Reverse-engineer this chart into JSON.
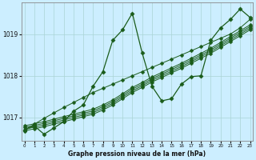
{
  "xlabel": "Graphe pression niveau de la mer (hPa)",
  "background_color": "#cceeff",
  "grid_color": "#aad4d4",
  "line_color": "#1a5c1a",
  "hours": [
    0,
    1,
    2,
    3,
    4,
    5,
    6,
    7,
    8,
    9,
    10,
    11,
    12,
    13,
    14,
    15,
    16,
    17,
    18,
    19,
    20,
    21,
    22,
    23
  ],
  "series_wavy": [
    1016.7,
    1016.8,
    1016.6,
    1016.75,
    1016.9,
    1017.15,
    1017.3,
    1017.75,
    1018.1,
    1018.85,
    1019.1,
    1019.5,
    1018.55,
    1017.75,
    1017.4,
    1017.45,
    1017.8,
    1017.98,
    1018.0,
    1018.85,
    1019.15,
    1019.35,
    1019.6,
    1019.4
  ],
  "series_band1": [
    1016.68,
    1016.73,
    1016.78,
    1016.84,
    1016.9,
    1016.96,
    1017.02,
    1017.08,
    1017.18,
    1017.3,
    1017.45,
    1017.6,
    1017.72,
    1017.85,
    1017.96,
    1018.07,
    1018.18,
    1018.3,
    1018.42,
    1018.54,
    1018.68,
    1018.82,
    1018.96,
    1019.1
  ],
  "series_band2": [
    1016.72,
    1016.77,
    1016.82,
    1016.88,
    1016.94,
    1017.0,
    1017.06,
    1017.12,
    1017.22,
    1017.34,
    1017.49,
    1017.64,
    1017.76,
    1017.89,
    1018.0,
    1018.11,
    1018.22,
    1018.34,
    1018.46,
    1018.58,
    1018.72,
    1018.86,
    1019.0,
    1019.14
  ],
  "series_band3": [
    1016.76,
    1016.81,
    1016.86,
    1016.92,
    1016.98,
    1017.04,
    1017.1,
    1017.16,
    1017.26,
    1017.38,
    1017.53,
    1017.68,
    1017.8,
    1017.93,
    1018.04,
    1018.15,
    1018.26,
    1018.38,
    1018.5,
    1018.62,
    1018.76,
    1018.9,
    1019.04,
    1019.18
  ],
  "series_band4": [
    1016.8,
    1016.85,
    1016.9,
    1016.96,
    1017.02,
    1017.08,
    1017.14,
    1017.2,
    1017.3,
    1017.42,
    1017.57,
    1017.72,
    1017.84,
    1017.97,
    1018.08,
    1018.19,
    1018.3,
    1018.42,
    1018.54,
    1018.66,
    1018.8,
    1018.94,
    1019.08,
    1019.22
  ],
  "series_straight": [
    1016.7,
    1016.84,
    1016.98,
    1017.11,
    1017.24,
    1017.36,
    1017.48,
    1017.6,
    1017.7,
    1017.8,
    1017.9,
    1018.0,
    1018.1,
    1018.2,
    1018.3,
    1018.4,
    1018.5,
    1018.6,
    1018.7,
    1018.8,
    1018.9,
    1019.0,
    1019.15,
    1019.35
  ],
  "ylim": [
    1016.45,
    1019.75
  ],
  "yticks": [
    1017.0,
    1018.0,
    1019.0
  ],
  "xticks": [
    0,
    1,
    2,
    3,
    4,
    5,
    6,
    7,
    8,
    9,
    10,
    11,
    12,
    13,
    14,
    15,
    16,
    17,
    18,
    19,
    20,
    21,
    22,
    23
  ]
}
